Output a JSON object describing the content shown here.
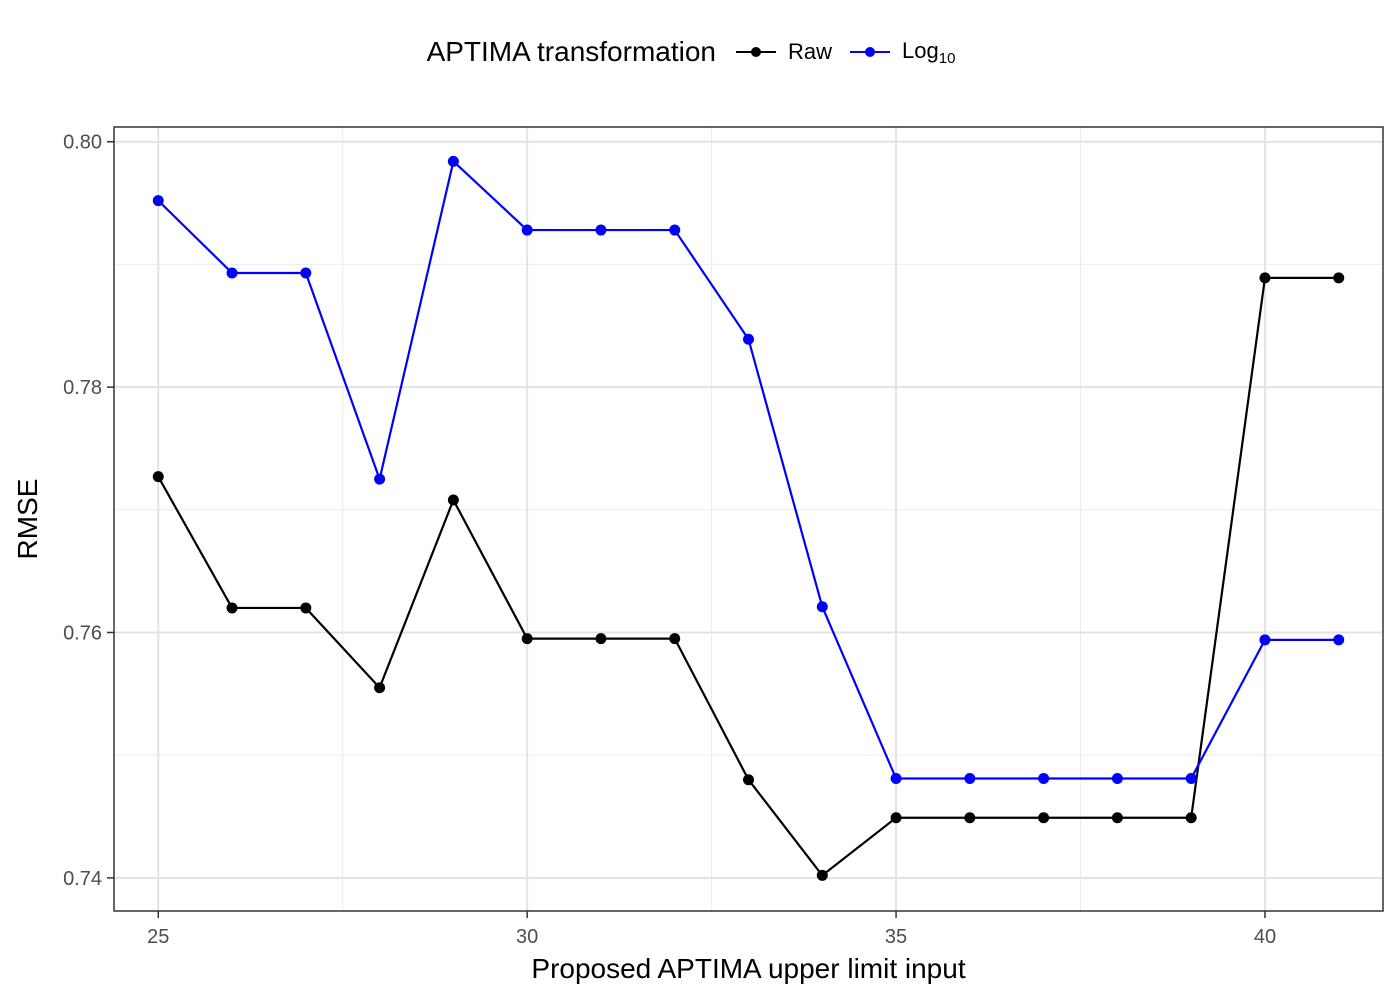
{
  "chart_data": {
    "type": "line",
    "legend": {
      "title": "APTIMA transformation",
      "position": "top",
      "entries": [
        {
          "label": "Raw",
          "color": "#000000"
        },
        {
          "label": "Log",
          "subscript": "10",
          "color": "#0000ff"
        }
      ]
    },
    "x": [
      25,
      26,
      27,
      28,
      29,
      30,
      31,
      32,
      33,
      34,
      35,
      36,
      37,
      38,
      39,
      40,
      41
    ],
    "series": [
      {
        "name": "Raw",
        "color": "#000000",
        "values": [
          0.7727,
          0.762,
          0.762,
          0.7555,
          0.7708,
          0.7595,
          0.7595,
          0.7595,
          0.748,
          0.7402,
          0.7449,
          0.7449,
          0.7449,
          0.7449,
          0.7449,
          0.7889,
          0.7889
        ]
      },
      {
        "name": "Log10",
        "color": "#0000ff",
        "values": [
          0.7952,
          0.7893,
          0.7893,
          0.7725,
          0.7984,
          0.7928,
          0.7928,
          0.7928,
          0.7839,
          0.7621,
          0.7481,
          0.7481,
          0.7481,
          0.7481,
          0.7481,
          0.7594,
          0.7594
        ]
      }
    ],
    "xlabel": "Proposed APTIMA upper limit input",
    "ylabel": "RMSE",
    "xlim": [
      24.4,
      41.6
    ],
    "ylim": [
      0.7373,
      0.8012
    ],
    "x_ticks": [
      25,
      30,
      35,
      40
    ],
    "x_tick_labels": [
      "25",
      "30",
      "35",
      "40"
    ],
    "y_ticks": [
      0.74,
      0.76,
      0.78,
      0.8
    ],
    "y_tick_labels": [
      "0.74",
      "0.76",
      "0.78",
      "0.80"
    ],
    "grid": true
  }
}
